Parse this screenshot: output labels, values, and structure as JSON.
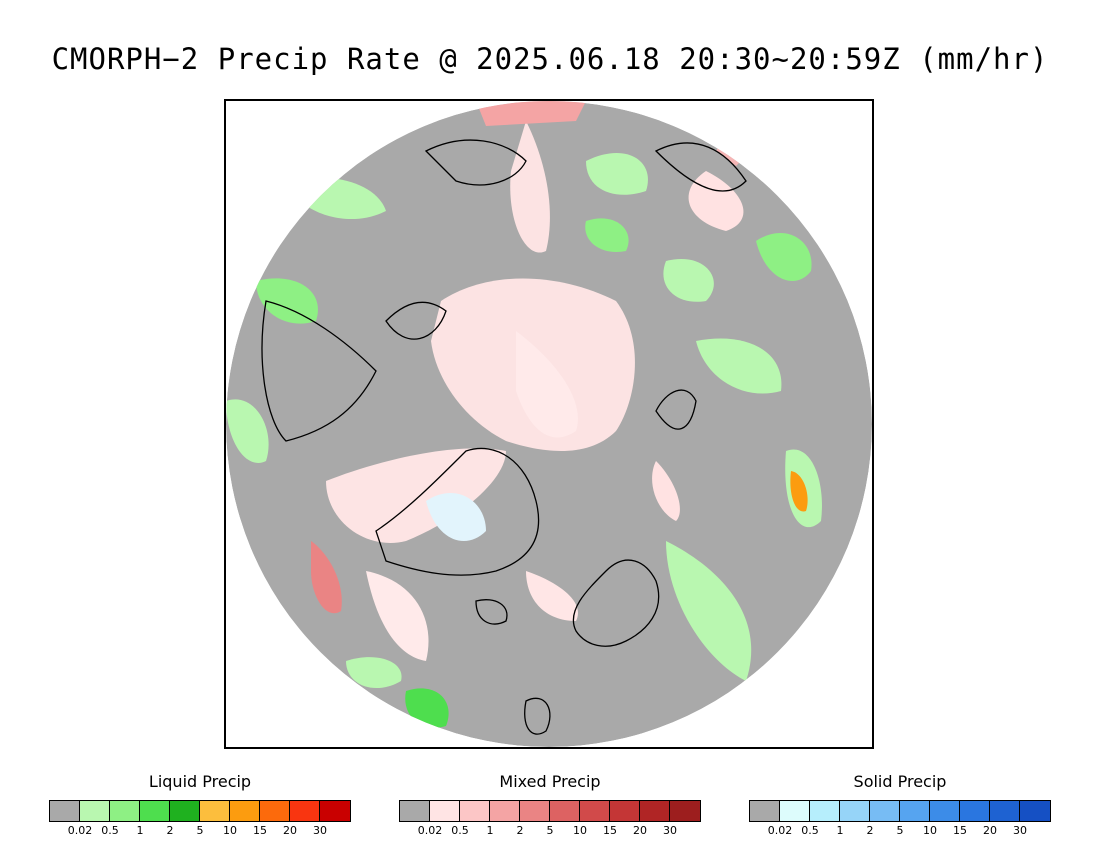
{
  "title": "CMORPH−2 Precip Rate @ 2025.06.18 20:30~20:59Z (mm/hr)",
  "map": {
    "projection": "north-polar-stereographic",
    "background_color": "#a9a9a9",
    "coast_color": "#000000"
  },
  "legends": [
    {
      "title": "Liquid Precip",
      "colors": [
        "#a9a9a9",
        "#b9f7b0",
        "#8ef084",
        "#4ede4e",
        "#1fb11f",
        "#fcbe3d",
        "#fc9c0f",
        "#fc6a0c",
        "#f93510",
        "#c90000"
      ],
      "ticks": [
        "0.02",
        "0.5",
        "1",
        "2",
        "5",
        "10",
        "15",
        "20",
        "30"
      ]
    },
    {
      "title": "Mixed Precip",
      "colors": [
        "#a9a9a9",
        "#ffe4e4",
        "#fcc6c6",
        "#f4a4a4",
        "#ea8484",
        "#dd6262",
        "#d14a4a",
        "#c43636",
        "#b02525",
        "#9d1e1e"
      ],
      "ticks": [
        "0.02",
        "0.5",
        "1",
        "2",
        "5",
        "10",
        "15",
        "20",
        "30"
      ]
    },
    {
      "title": "Solid Precip",
      "colors": [
        "#a9a9a9",
        "#ddfcfc",
        "#b6eefc",
        "#96d4f8",
        "#77bcf4",
        "#56a4f0",
        "#3c8ce8",
        "#2a76e0",
        "#1e62d2",
        "#1550c4"
      ],
      "ticks": [
        "0.02",
        "0.5",
        "1",
        "2",
        "5",
        "10",
        "15",
        "20",
        "30"
      ]
    }
  ]
}
